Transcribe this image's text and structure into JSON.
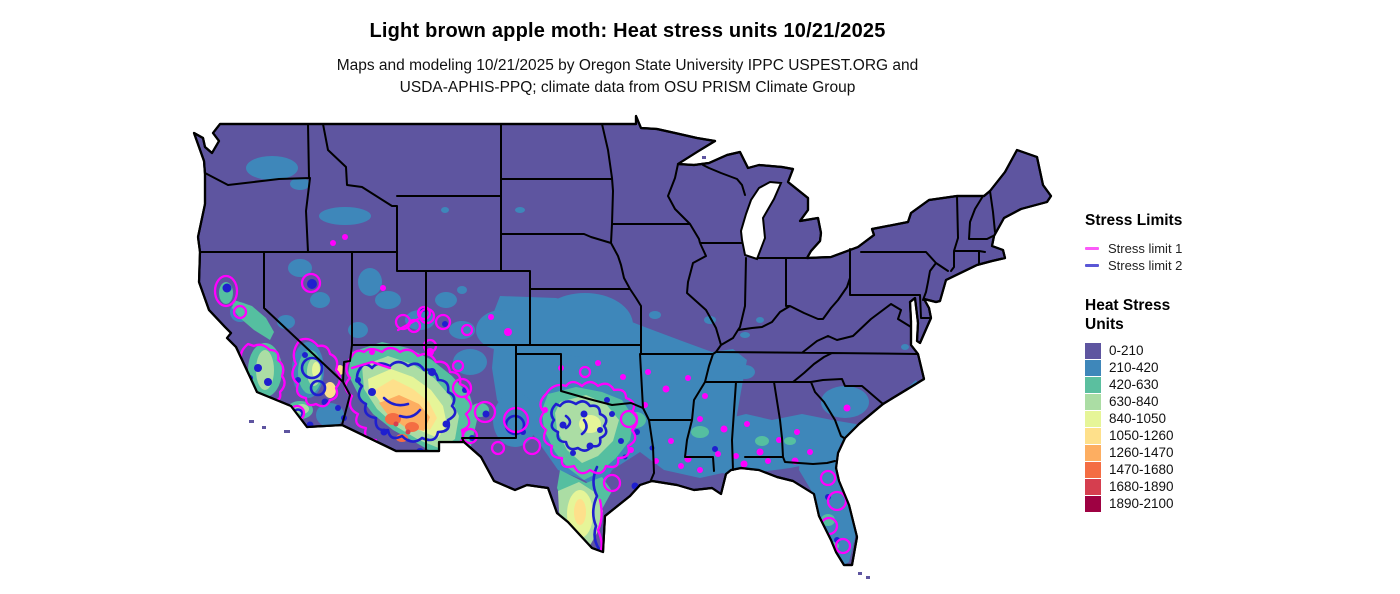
{
  "title": "Light brown apple moth: Heat stress units 10/21/2025",
  "subtitle": [
    "Maps and modeling 10/21/2025 by Oregon State University IPPC USPEST.ORG and",
    "USDA-APHIS-PPQ; climate data from OSU PRISM Climate Group"
  ],
  "stress_limits": {
    "title": "Stress Limits",
    "items": [
      {
        "label": "Stress limit 1",
        "color": "#fb5af8"
      },
      {
        "label": "Stress limit 2",
        "color": "#5a57d6"
      }
    ]
  },
  "heat_stress_units": {
    "title_line1": "Heat Stress",
    "title_line2": "Units",
    "items": [
      {
        "label": "0-210",
        "color": "#5e55a0"
      },
      {
        "label": "210-420",
        "color": "#3e87ba"
      },
      {
        "label": "420-630",
        "color": "#5bbf9f"
      },
      {
        "label": "630-840",
        "color": "#abdda4"
      },
      {
        "label": "840-1050",
        "color": "#e6f598"
      },
      {
        "label": "1050-1260",
        "color": "#fee08b"
      },
      {
        "label": "1260-1470",
        "color": "#fdae61"
      },
      {
        "label": "1470-1680",
        "color": "#f46d43"
      },
      {
        "label": "1680-1890",
        "color": "#d53e4f"
      },
      {
        "label": "1890-2100",
        "color": "#9e0142"
      }
    ]
  },
  "map": {
    "base_region_color": "#5e55a0",
    "stress_limit_1_color": "#ff00ff",
    "stress_limit_2_color": "#1f1fcf"
  }
}
